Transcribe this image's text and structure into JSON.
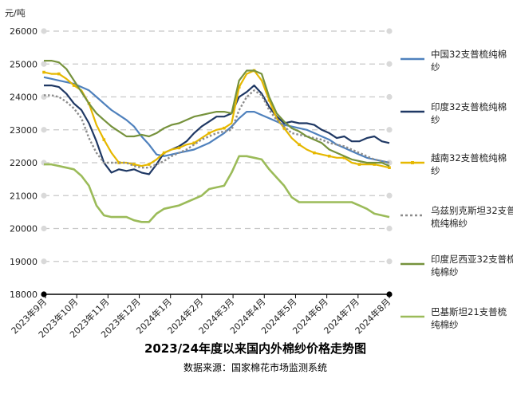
{
  "chart_data": {
    "type": "line",
    "title": "2023/24年度以来国内外棉纱价格走势图",
    "source": "数据来源：国家棉花市场监测系统",
    "unit": "元/吨",
    "ylim": [
      18000,
      26000
    ],
    "yticks": [
      "26000",
      "25000",
      "24000",
      "23000",
      "22000",
      "21000",
      "20000",
      "19000",
      "18000"
    ],
    "xlim": [
      0,
      46
    ],
    "x_labels": [
      "2023年9月",
      "2023年10月",
      "2023年11月",
      "2023年12月",
      "2024年1月",
      "2024年2月",
      "2024年3月",
      "2024年4月",
      "2024年5月",
      "2024年6月",
      "2024年7月",
      "2024年8月"
    ],
    "grid": true,
    "legend_position": "right",
    "series": [
      {
        "name": "中国32支普梳纯棉纱",
        "color": "#4f81bd",
        "style": "solid",
        "values": [
          24600,
          24550,
          24500,
          24450,
          24400,
          24300,
          24200,
          24000,
          23800,
          23600,
          23450,
          23300,
          23100,
          22800,
          22550,
          22250,
          22200,
          22250,
          22300,
          22350,
          22400,
          22500,
          22600,
          22750,
          22900,
          23100,
          23350,
          23550,
          23550,
          23450,
          23350,
          23250,
          23150,
          23100,
          23050,
          23000,
          22900,
          22800,
          22700,
          22550,
          22450,
          22350,
          22250,
          22150,
          22100,
          22050,
          22000
        ]
      },
      {
        "name": "印度32支普梳纯棉纱",
        "color": "#1f3864",
        "style": "solid",
        "values": [
          24350,
          24350,
          24300,
          24100,
          23800,
          23600,
          23200,
          22650,
          22000,
          21700,
          21800,
          21750,
          21800,
          21700,
          21650,
          21950,
          22300,
          22400,
          22500,
          22650,
          22900,
          23100,
          23250,
          23400,
          23400,
          23500,
          24000,
          24150,
          24350,
          24100,
          23700,
          23400,
          23200,
          23250,
          23200,
          23200,
          23150,
          23000,
          22900,
          22750,
          22800,
          22650,
          22650,
          22750,
          22800,
          22650,
          22600
        ]
      },
      {
        "name": "越南32支普梳纯棉纱",
        "color": "#e6b800",
        "style": "solid-marker",
        "values": [
          24750,
          24700,
          24700,
          24550,
          24350,
          24200,
          23800,
          23150,
          22700,
          22300,
          22000,
          22000,
          21950,
          21900,
          21950,
          22100,
          22300,
          22400,
          22450,
          22550,
          22600,
          22750,
          22900,
          23000,
          23050,
          23200,
          24300,
          24700,
          24800,
          24500,
          23900,
          23350,
          23050,
          22750,
          22550,
          22400,
          22300,
          22250,
          22200,
          22150,
          22150,
          22000,
          21950,
          21950,
          21950,
          21900,
          21850
        ]
      },
      {
        "name": "乌兹别克斯坦32支普梳纯棉纱",
        "color": "#8c8c8c",
        "style": "dotted",
        "values": [
          24050,
          24050,
          24000,
          23850,
          23650,
          23350,
          22750,
          22300,
          22000,
          22000,
          22000,
          22000,
          21900,
          21850,
          21850,
          21950,
          22050,
          22200,
          22300,
          22400,
          22550,
          22700,
          22800,
          22900,
          22950,
          23000,
          23600,
          24000,
          24200,
          24050,
          23600,
          23300,
          23100,
          22900,
          22850,
          22800,
          22750,
          22700,
          22600,
          22550,
          22500,
          22400,
          22300,
          22200,
          22100,
          22050,
          22000
        ]
      },
      {
        "name": "印度尼西亚32支普梳纯棉纱",
        "color": "#76923c",
        "style": "solid",
        "values": [
          25100,
          25100,
          25050,
          24850,
          24500,
          24150,
          23800,
          23500,
          23300,
          23100,
          22950,
          22800,
          22800,
          22850,
          22800,
          22900,
          23050,
          23150,
          23200,
          23300,
          23400,
          23450,
          23500,
          23550,
          23550,
          23500,
          24500,
          24800,
          24800,
          24700,
          24000,
          23500,
          23250,
          23050,
          22950,
          22800,
          22700,
          22600,
          22400,
          22300,
          22200,
          22100,
          22050,
          22000,
          22000,
          22000,
          21900
        ]
      },
      {
        "name": "巴基斯坦21支普梳纯棉纱",
        "color": "#9bbb59",
        "style": "solid",
        "values": [
          21950,
          21950,
          21900,
          21850,
          21800,
          21600,
          21300,
          20700,
          20400,
          20350,
          20350,
          20350,
          20250,
          20200,
          20200,
          20450,
          20600,
          20650,
          20700,
          20800,
          20900,
          21000,
          21200,
          21250,
          21300,
          21700,
          22200,
          22200,
          22150,
          22100,
          21800,
          21550,
          21300,
          20950,
          20800,
          20800,
          20800,
          20800,
          20800,
          20800,
          20800,
          20800,
          20700,
          20600,
          20450,
          20400,
          20350
        ]
      }
    ]
  }
}
